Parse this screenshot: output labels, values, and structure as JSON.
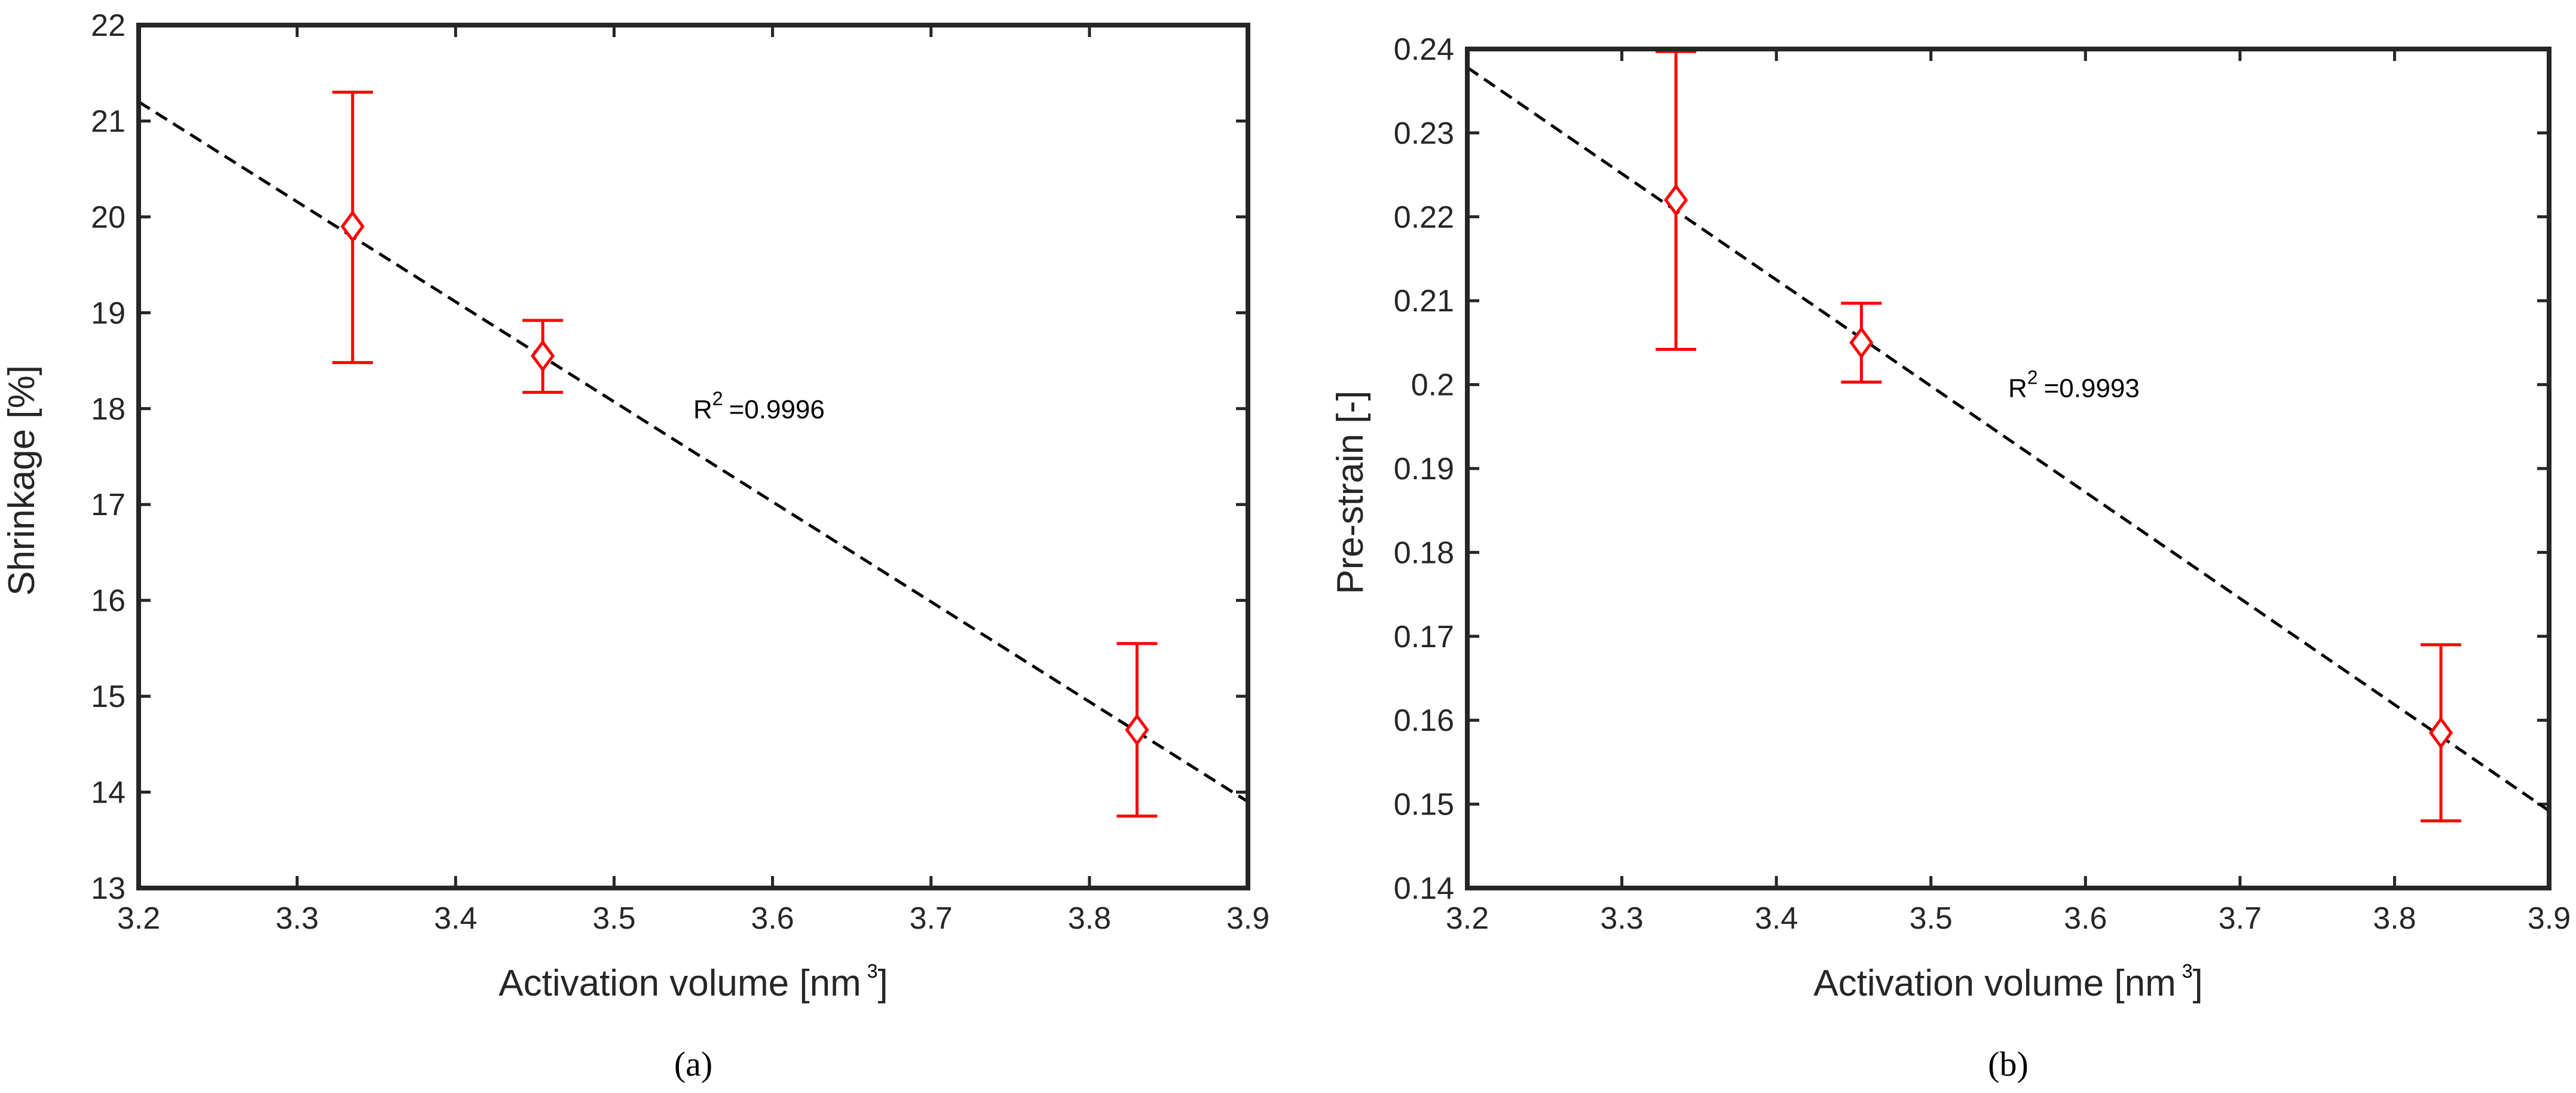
{
  "chart_data": [
    {
      "type": "scatter",
      "panel_caption": "(a)",
      "xlabel_main": "Activation volume [nm",
      "xlabel_sup": "3",
      "xlabel_close": "]",
      "ylabel": "Shrinkage [%]",
      "xlim": [
        3.2,
        3.9
      ],
      "ylim": [
        13,
        22
      ],
      "xticks": [
        "3.2",
        "3.3",
        "3.4",
        "3.5",
        "3.6",
        "3.7",
        "3.8",
        "3.9"
      ],
      "yticks": [
        "13",
        "14",
        "15",
        "16",
        "17",
        "18",
        "19",
        "20",
        "21",
        "22"
      ],
      "points": [
        {
          "x": 3.335,
          "y": 19.9,
          "err_low": 18.48,
          "err_high": 21.3
        },
        {
          "x": 3.455,
          "y": 18.55,
          "err_low": 18.17,
          "err_high": 18.92
        },
        {
          "x": 3.83,
          "y": 14.65,
          "err_low": 13.75,
          "err_high": 15.55
        }
      ],
      "fit_line": {
        "x": [
          3.2,
          3.9
        ],
        "y": [
          21.2,
          13.9
        ]
      },
      "annotation": {
        "prefix": "R",
        "sup": "2",
        "text": "=0.9996",
        "x": 3.55,
        "y": 17.9
      },
      "marker_color": "#ff0000",
      "line_color": "#000000"
    },
    {
      "type": "scatter",
      "panel_caption": "(b)",
      "xlabel_main": "Activation volume [nm",
      "xlabel_sup": "3",
      "xlabel_close": "]",
      "ylabel": "Pre-strain [-]",
      "xlim": [
        3.2,
        3.9
      ],
      "ylim": [
        0.14,
        0.24
      ],
      "xticks": [
        "3.2",
        "3.3",
        "3.4",
        "3.5",
        "3.6",
        "3.7",
        "3.8",
        "3.9"
      ],
      "yticks": [
        "0.14",
        "0.15",
        "0.16",
        "0.17",
        "0.18",
        "0.19",
        "0.2",
        "0.21",
        "0.22",
        "0.23",
        "0.24"
      ],
      "points": [
        {
          "x": 3.335,
          "y": 0.222,
          "err_low": 0.2042,
          "err_high": 0.2397
        },
        {
          "x": 3.455,
          "y": 0.205,
          "err_low": 0.2003,
          "err_high": 0.2097
        },
        {
          "x": 3.83,
          "y": 0.1585,
          "err_low": 0.148,
          "err_high": 0.169
        }
      ],
      "fit_line": {
        "x": [
          3.2,
          3.9
        ],
        "y": [
          0.2378,
          0.1492
        ]
      },
      "annotation": {
        "prefix": "R",
        "sup": "2",
        "text": "=0.9993",
        "x": 3.55,
        "y": 0.1985
      },
      "marker_color": "#ff0000",
      "line_color": "#000000"
    }
  ]
}
